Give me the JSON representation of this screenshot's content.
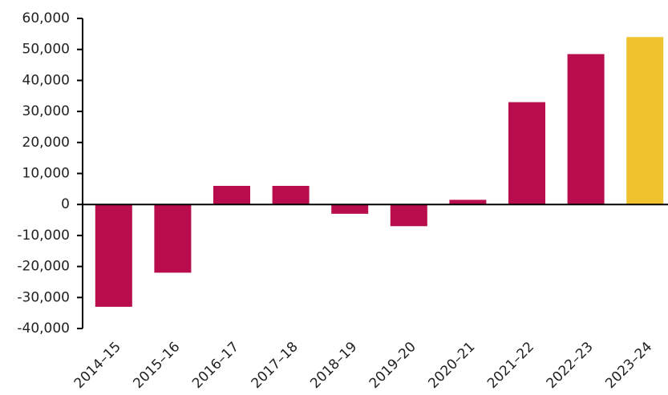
{
  "chart_data": {
    "type": "bar",
    "categories": [
      "2014–15",
      "2015–16",
      "2016–17",
      "2017–18",
      "2018–19",
      "2019–20",
      "2020–21",
      "2021–22",
      "2022–23",
      "2023–24"
    ],
    "values": [
      -33000,
      -22000,
      6000,
      6000,
      -3000,
      -7000,
      1500,
      33000,
      48500,
      54000
    ],
    "colors": [
      "#b80c4c",
      "#b80c4c",
      "#b80c4c",
      "#b80c4c",
      "#b80c4c",
      "#b80c4c",
      "#b80c4c",
      "#b80c4c",
      "#b80c4c",
      "#f0c22e"
    ],
    "ylim": [
      -40000,
      60000
    ],
    "yticks": [
      {
        "value": -40000,
        "label": "-40,000"
      },
      {
        "value": -30000,
        "label": "-30,000"
      },
      {
        "value": -20000,
        "label": "-20,000"
      },
      {
        "value": -10000,
        "label": "-10,000"
      },
      0,
      {
        "value": 10000,
        "label": "10,000"
      },
      {
        "value": 20000,
        "label": "20,000"
      },
      {
        "value": 30000,
        "label": "30,000"
      },
      {
        "value": 40000,
        "label": "40,000"
      },
      {
        "value": 50000,
        "label": "50,000"
      },
      {
        "value": 60000,
        "label": "60,000"
      }
    ],
    "grid": false
  }
}
